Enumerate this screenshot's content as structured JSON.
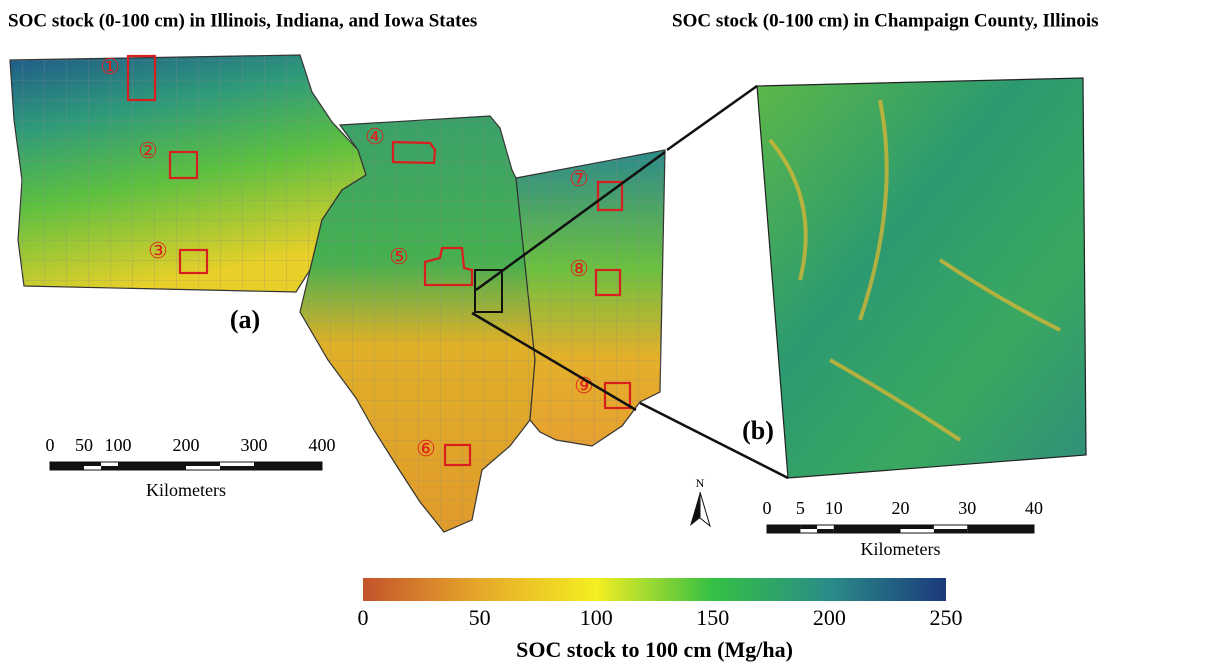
{
  "titles": {
    "left": "SOC stock (0-100 cm) in Illinois, Indiana, and Iowa States",
    "right": "SOC stock (0-100 cm) in Champaign County, Illinois"
  },
  "panel_labels": {
    "a": "(a)",
    "b": "(b)"
  },
  "sites": [
    "①",
    "②",
    "③",
    "④",
    "⑤",
    "⑥",
    "⑦",
    "⑧",
    "⑨"
  ],
  "north": "N",
  "scale_bar_a": {
    "ticks": [
      0,
      50,
      100,
      200,
      300,
      400
    ],
    "unit": "Kilometers"
  },
  "scale_bar_b": {
    "ticks": [
      0,
      5,
      10,
      20,
      30,
      40
    ],
    "unit": "Kilometers"
  },
  "colorbar": {
    "ticks": [
      0,
      50,
      100,
      150,
      200,
      250
    ],
    "label": "SOC stock to 100 cm (Mg/ha)"
  }
}
